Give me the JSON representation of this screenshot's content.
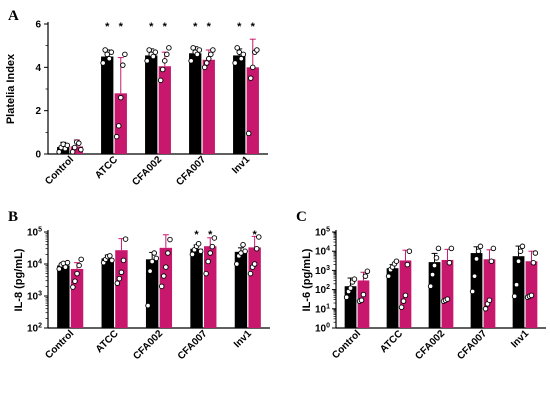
{
  "chart_data": [
    {
      "panel_label": "A",
      "type": "bar",
      "ylabel": "Platelia Index",
      "scale": "linear",
      "ylim": [
        0,
        6
      ],
      "yticks": [
        0,
        2,
        4,
        6
      ],
      "categories": [
        "Control",
        "ATCC",
        "CFA002",
        "CFA007",
        "Inv1"
      ],
      "colors": [
        "#000000",
        "#c8186e"
      ],
      "series": [
        {
          "values": [
            0.32,
            4.5,
            4.55,
            4.65,
            4.55
          ],
          "err": [
            0.22,
            0.3,
            0.3,
            0.3,
            0.3
          ],
          "points": [
            [
              0.1,
              0.3,
              0.45,
              0.25,
              0.4
            ],
            [
              4.2,
              4.8,
              4.6,
              4.4,
              4.7
            ],
            [
              4.3,
              4.8,
              4.6,
              4.5,
              4.7
            ],
            [
              4.3,
              4.9,
              4.7,
              4.6,
              4.8
            ],
            [
              4.2,
              4.9,
              4.7,
              4.4,
              4.6
            ]
          ],
          "stars": [
            false,
            true,
            true,
            true,
            true
          ]
        },
        {
          "values": [
            0.35,
            2.8,
            4.05,
            4.35,
            4.0
          ],
          "err": [
            0.3,
            1.65,
            0.65,
            0.45,
            1.3
          ],
          "points": [
            [
              0.1,
              0.3,
              0.55,
              0.5,
              0.2
            ],
            [
              0.8,
              1.3,
              2.6,
              4.1,
              4.6
            ],
            [
              3.4,
              3.9,
              4.3,
              4.6,
              4.9
            ],
            [
              4.0,
              4.2,
              4.4,
              4.6,
              4.8
            ],
            [
              0.95,
              3.5,
              4.0,
              4.7,
              4.8
            ]
          ],
          "stars": [
            false,
            true,
            true,
            true,
            true
          ]
        }
      ]
    },
    {
      "panel_label": "B",
      "type": "bar",
      "ylabel": "IL-8 (pg/mL)",
      "scale": "log",
      "ylim": [
        100,
        100000
      ],
      "yticks": [
        "10^2",
        "10^3",
        "10^4",
        "10^5"
      ],
      "categories": [
        "Control",
        "ATCC",
        "CFA002",
        "CFA007",
        "Inv1"
      ],
      "colors": [
        "#000000",
        "#c8186e"
      ],
      "series": [
        {
          "values": [
            9000,
            15000,
            14000,
            30000,
            24000
          ],
          "err": [
            2000,
            4000,
            9000,
            9000,
            8000
          ],
          "points": [
            [
              7000,
              9500,
              10500,
              8000,
              11000
            ],
            [
              11000,
              14000,
              17000,
              18000,
              13000
            ],
            [
              500,
              6000,
              12000,
              22000,
              15000
            ],
            [
              20000,
              28000,
              36000,
              43000,
              25000
            ],
            [
              10000,
              18000,
              22000,
              40000,
              25000
            ]
          ],
          "stars": [
            false,
            false,
            false,
            true,
            false
          ]
        },
        {
          "values": [
            7000,
            27000,
            32000,
            36000,
            33000
          ],
          "err": [
            4000,
            35000,
            50000,
            30000,
            40000
          ],
          "points": [
            [
              1900,
              2900,
              5000,
              9000,
              14000
            ],
            [
              2500,
              3500,
              5500,
              13000,
              60000
            ],
            [
              2000,
              4200,
              8000,
              22000,
              58000
            ],
            [
              5000,
              12000,
              22000,
              35000,
              65000
            ],
            [
              5000,
              8000,
              10000,
              30000,
              70000
            ]
          ],
          "stars": [
            false,
            false,
            false,
            true,
            true
          ]
        }
      ]
    },
    {
      "panel_label": "C",
      "type": "bar",
      "ylabel": "IL-6 (pg/mL)",
      "scale": "log",
      "ylim": [
        1,
        100000
      ],
      "yticks": [
        "10^0",
        "10^1",
        "10^2",
        "10^3",
        "10^4",
        "10^5"
      ],
      "categories": [
        "Control",
        "ATCC",
        "CFA002",
        "CFA007",
        "Inv1"
      ],
      "colors": [
        "#000000",
        "#c8186e"
      ],
      "series": [
        {
          "values": [
            150,
            1300,
            2700,
            8000,
            5500
          ],
          "err": [
            250,
            700,
            5000,
            9000,
            13000
          ],
          "points": [
            [
              40,
              80,
              120,
              250,
              350
            ],
            [
              500,
              1100,
              1500,
              2200,
              3000
            ],
            [
              150,
              600,
              1800,
              4500,
              14000
            ],
            [
              80,
              500,
              4000,
              10000,
              18000
            ],
            [
              45,
              180,
              3000,
              10000,
              18000
            ]
          ],
          "stars": [
            false,
            false,
            false,
            false,
            false
          ]
        },
        {
          "values": [
            300,
            3300,
            3500,
            3800,
            3000
          ],
          "err": [
            500,
            8000,
            9000,
            8000,
            7000
          ],
          "points": [
            [
              25,
              28,
              55,
              500,
              900
            ],
            [
              12,
              25,
              50,
              2000,
              10000
            ],
            [
              25,
              28,
              32,
              2500,
              14000
            ],
            [
              10,
              18,
              28,
              3000,
              14000
            ],
            [
              40,
              45,
              50,
              2500,
              8000
            ]
          ],
          "stars": [
            false,
            false,
            false,
            false,
            false
          ]
        }
      ]
    }
  ]
}
